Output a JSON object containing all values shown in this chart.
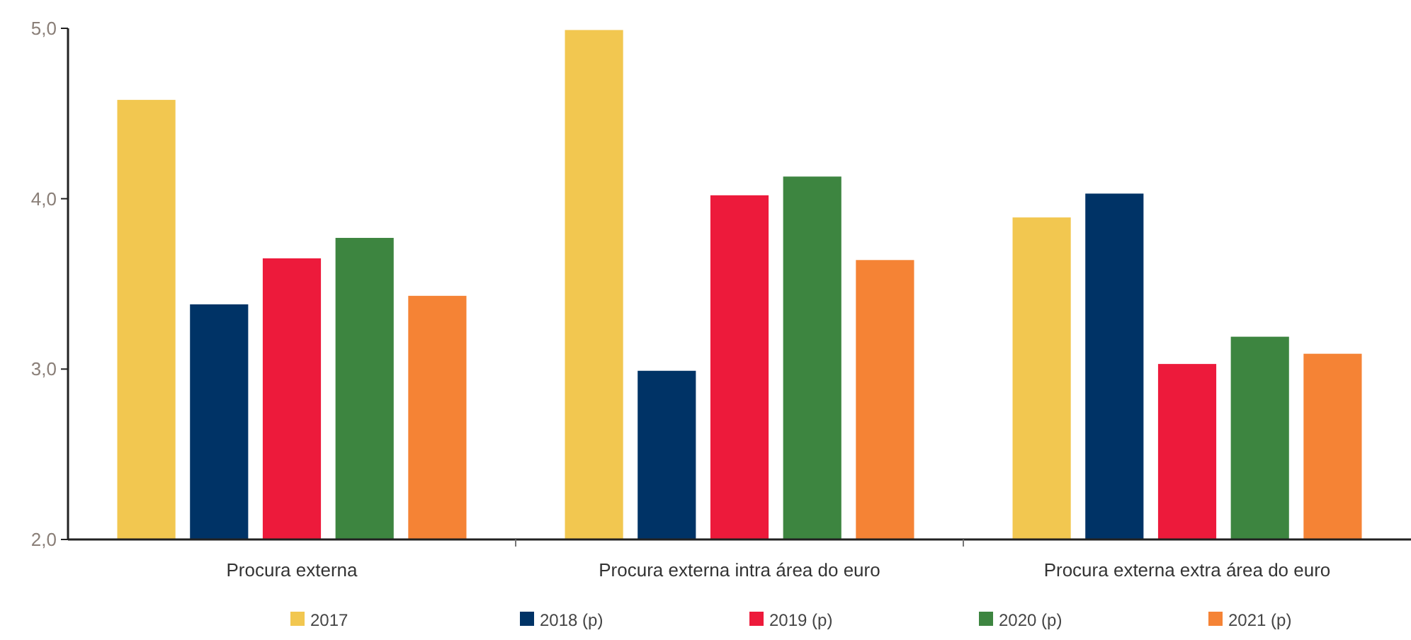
{
  "chart_data": {
    "type": "bar",
    "categories": [
      "Procura externa",
      "Procura externa intra área do euro",
      "Procura externa extra área do euro"
    ],
    "series": [
      {
        "name": "2017",
        "color": "#f2c750",
        "values": [
          4.58,
          4.99,
          3.89
        ]
      },
      {
        "name": "2018 (p)",
        "color": "#003366",
        "values": [
          3.38,
          2.99,
          4.03
        ]
      },
      {
        "name": "2019 (p)",
        "color": "#ed1a3b",
        "values": [
          3.65,
          4.02,
          3.03
        ]
      },
      {
        "name": "2020 (p)",
        "color": "#3d8540",
        "values": [
          3.77,
          4.13,
          3.19
        ]
      },
      {
        "name": "2021 (p)",
        "color": "#f58335",
        "values": [
          3.43,
          3.64,
          3.09
        ]
      }
    ],
    "ylim": [
      2,
      5
    ],
    "yticks": [
      {
        "value": 2,
        "label": "2,0"
      },
      {
        "value": 3,
        "label": "3,0"
      },
      {
        "value": 4,
        "label": "4,0"
      },
      {
        "value": 5,
        "label": "5,0"
      }
    ],
    "grid": false,
    "legend": "bottom"
  }
}
